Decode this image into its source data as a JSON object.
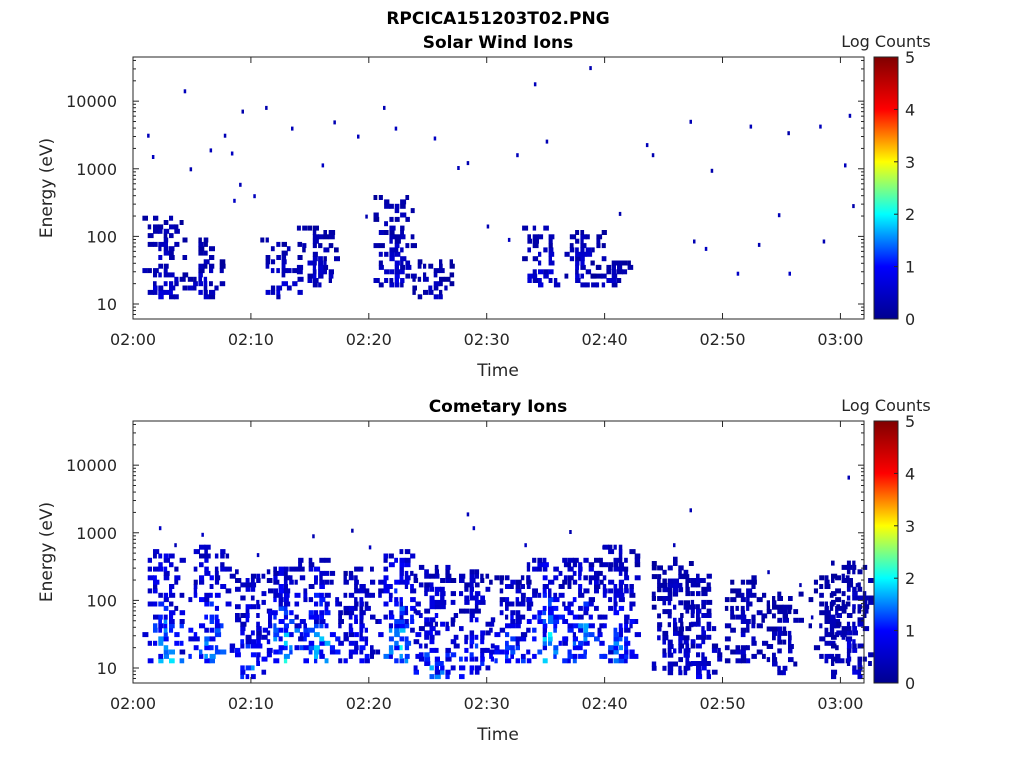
{
  "figure": {
    "title": "RPCICA151203T02.PNG"
  },
  "colormap": {
    "name": "jet",
    "stops": [
      "#00008f",
      "#0000ff",
      "#00ffff",
      "#ffff00",
      "#ff0000",
      "#800000"
    ]
  },
  "chart_data": [
    {
      "type": "heatmap",
      "title": "Solar Wind Ions",
      "xlabel": "Time",
      "ylabel": "Energy (eV)",
      "x_ticks": [
        "02:00",
        "02:10",
        "02:20",
        "02:30",
        "02:40",
        "02:50",
        "03:00"
      ],
      "y_ticks": [
        "10",
        "100",
        "1000",
        "10000"
      ],
      "y_scale": "log",
      "ylim": [
        6,
        45000
      ],
      "xlim_minutes": [
        0,
        62
      ],
      "colorbar": {
        "label": "Log Counts",
        "ticks": [
          "0",
          "1",
          "2",
          "3",
          "4",
          "5"
        ],
        "range": [
          0,
          5
        ]
      },
      "bursts": [
        {
          "t": 2.4,
          "e_low": 12,
          "e_high": 180,
          "intensity": 0.8
        },
        {
          "t": 5.8,
          "e_low": 12,
          "e_high": 90,
          "intensity": 0.7
        },
        {
          "t": 12.4,
          "e_low": 12,
          "e_high": 90,
          "intensity": 0.8
        },
        {
          "t": 15.5,
          "e_low": 18,
          "e_high": 140,
          "intensity": 0.8
        },
        {
          "t": 22.0,
          "e_low": 18,
          "e_high": 400,
          "intensity": 0.8
        },
        {
          "t": 25.3,
          "e_low": 12,
          "e_high": 40,
          "intensity": 0.6
        },
        {
          "t": 34.6,
          "e_low": 18,
          "e_high": 130,
          "intensity": 0.9
        },
        {
          "t": 38.2,
          "e_low": 18,
          "e_high": 120,
          "intensity": 0.9
        },
        {
          "t": 40.4,
          "e_low": 18,
          "e_high": 40,
          "intensity": 0.6
        }
      ],
      "scatter": [
        {
          "t": 1.2,
          "e": 3300
        },
        {
          "t": 1.6,
          "e": 1600
        },
        {
          "t": 4.3,
          "e": 15000
        },
        {
          "t": 4.8,
          "e": 1050
        },
        {
          "t": 6.5,
          "e": 2000
        },
        {
          "t": 7.7,
          "e": 3300
        },
        {
          "t": 9.2,
          "e": 7500
        },
        {
          "t": 11.2,
          "e": 8500
        },
        {
          "t": 13.4,
          "e": 4200
        },
        {
          "t": 16.0,
          "e": 1200
        },
        {
          "t": 17.0,
          "e": 5200
        },
        {
          "t": 19.0,
          "e": 3200
        },
        {
          "t": 21.2,
          "e": 8500
        },
        {
          "t": 22.2,
          "e": 4200
        },
        {
          "t": 25.5,
          "e": 3000
        },
        {
          "t": 27.5,
          "e": 1100
        },
        {
          "t": 32.5,
          "e": 1700
        },
        {
          "t": 34.0,
          "e": 19000
        },
        {
          "t": 35.0,
          "e": 2700
        },
        {
          "t": 38.7,
          "e": 33000
        },
        {
          "t": 41.2,
          "e": 230
        },
        {
          "t": 43.5,
          "e": 2400
        },
        {
          "t": 44.0,
          "e": 1700
        },
        {
          "t": 47.2,
          "e": 5300
        },
        {
          "t": 49.0,
          "e": 1000
        },
        {
          "t": 52.3,
          "e": 4500
        },
        {
          "t": 55.5,
          "e": 3600
        },
        {
          "t": 58.2,
          "e": 4500
        },
        {
          "t": 60.3,
          "e": 1200
        },
        {
          "t": 60.7,
          "e": 6500
        },
        {
          "t": 61.0,
          "e": 300
        },
        {
          "t": 58.5,
          "e": 90
        },
        {
          "t": 54.7,
          "e": 220
        },
        {
          "t": 53.0,
          "e": 80
        },
        {
          "t": 47.5,
          "e": 90
        },
        {
          "t": 48.5,
          "e": 70
        },
        {
          "t": 51.2,
          "e": 30
        },
        {
          "t": 55.6,
          "e": 30
        },
        {
          "t": 28.3,
          "e": 1300
        },
        {
          "t": 30.0,
          "e": 150
        },
        {
          "t": 31.8,
          "e": 95
        },
        {
          "t": 19.7,
          "e": 210
        },
        {
          "t": 9.0,
          "e": 620
        },
        {
          "t": 8.5,
          "e": 360
        },
        {
          "t": 10.2,
          "e": 420
        },
        {
          "t": 8.3,
          "e": 1800
        }
      ]
    },
    {
      "type": "heatmap",
      "title": "Cometary Ions",
      "xlabel": "Time",
      "ylabel": "Energy (eV)",
      "x_ticks": [
        "02:00",
        "02:10",
        "02:20",
        "02:30",
        "02:40",
        "02:50",
        "03:00"
      ],
      "y_ticks": [
        "10",
        "100",
        "1000",
        "10000"
      ],
      "y_scale": "log",
      "ylim": [
        6,
        45000
      ],
      "xlim_minutes": [
        0,
        62
      ],
      "colorbar": {
        "label": "Log Counts",
        "ticks": [
          "0",
          "1",
          "2",
          "3",
          "4",
          "5"
        ],
        "range": [
          0,
          5
        ]
      },
      "bursts": [
        {
          "t": 2.4,
          "e_low": 12,
          "e_high": 550,
          "intensity": 1.8
        },
        {
          "t": 6.3,
          "e_low": 12,
          "e_high": 600,
          "intensity": 1.6
        },
        {
          "t": 9.8,
          "e_low": 7,
          "e_high": 250,
          "intensity": 1.3
        },
        {
          "t": 12.6,
          "e_low": 12,
          "e_high": 300,
          "intensity": 1.9
        },
        {
          "t": 15.6,
          "e_low": 12,
          "e_high": 400,
          "intensity": 1.7
        },
        {
          "t": 19.0,
          "e_low": 12,
          "e_high": 300,
          "intensity": 1.2
        },
        {
          "t": 22.4,
          "e_low": 12,
          "e_high": 500,
          "intensity": 1.9
        },
        {
          "t": 25.4,
          "e_low": 7,
          "e_high": 300,
          "intensity": 1.4
        },
        {
          "t": 28.8,
          "e_low": 7,
          "e_high": 250,
          "intensity": 1.3
        },
        {
          "t": 31.8,
          "e_low": 12,
          "e_high": 220,
          "intensity": 1.3
        },
        {
          "t": 35.0,
          "e_low": 12,
          "e_high": 400,
          "intensity": 1.9
        },
        {
          "t": 38.0,
          "e_low": 12,
          "e_high": 380,
          "intensity": 1.7
        },
        {
          "t": 41.0,
          "e_low": 12,
          "e_high": 600,
          "intensity": 1.4
        },
        {
          "t": 45.6,
          "e_low": 8,
          "e_high": 420,
          "intensity": 0.9
        },
        {
          "t": 48.0,
          "e_low": 7,
          "e_high": 220,
          "intensity": 0.9
        },
        {
          "t": 51.8,
          "e_low": 12,
          "e_high": 220,
          "intensity": 0.7
        },
        {
          "t": 54.9,
          "e_low": 8,
          "e_high": 120,
          "intensity": 0.7
        },
        {
          "t": 58.9,
          "e_low": 12,
          "e_high": 220,
          "intensity": 0.6
        },
        {
          "t": 60.8,
          "e_low": 7,
          "e_high": 400,
          "intensity": 0.8
        }
      ],
      "scatter": [
        {
          "t": 2.2,
          "e": 1250
        },
        {
          "t": 5.8,
          "e": 1000
        },
        {
          "t": 15.2,
          "e": 950
        },
        {
          "t": 18.5,
          "e": 1150
        },
        {
          "t": 28.3,
          "e": 2000
        },
        {
          "t": 28.8,
          "e": 1250
        },
        {
          "t": 37.0,
          "e": 1100
        },
        {
          "t": 47.2,
          "e": 2300
        },
        {
          "t": 60.6,
          "e": 7000
        },
        {
          "t": 10.5,
          "e": 500
        },
        {
          "t": 20.0,
          "e": 650
        },
        {
          "t": 33.2,
          "e": 700
        },
        {
          "t": 39.8,
          "e": 650
        },
        {
          "t": 45.8,
          "e": 700
        },
        {
          "t": 53.8,
          "e": 280
        },
        {
          "t": 56.5,
          "e": 180
        },
        {
          "t": 57.5,
          "e": 60
        },
        {
          "t": 61.3,
          "e": 180
        },
        {
          "t": 3.5,
          "e": 700
        },
        {
          "t": 47.8,
          "e": 50
        }
      ]
    }
  ]
}
